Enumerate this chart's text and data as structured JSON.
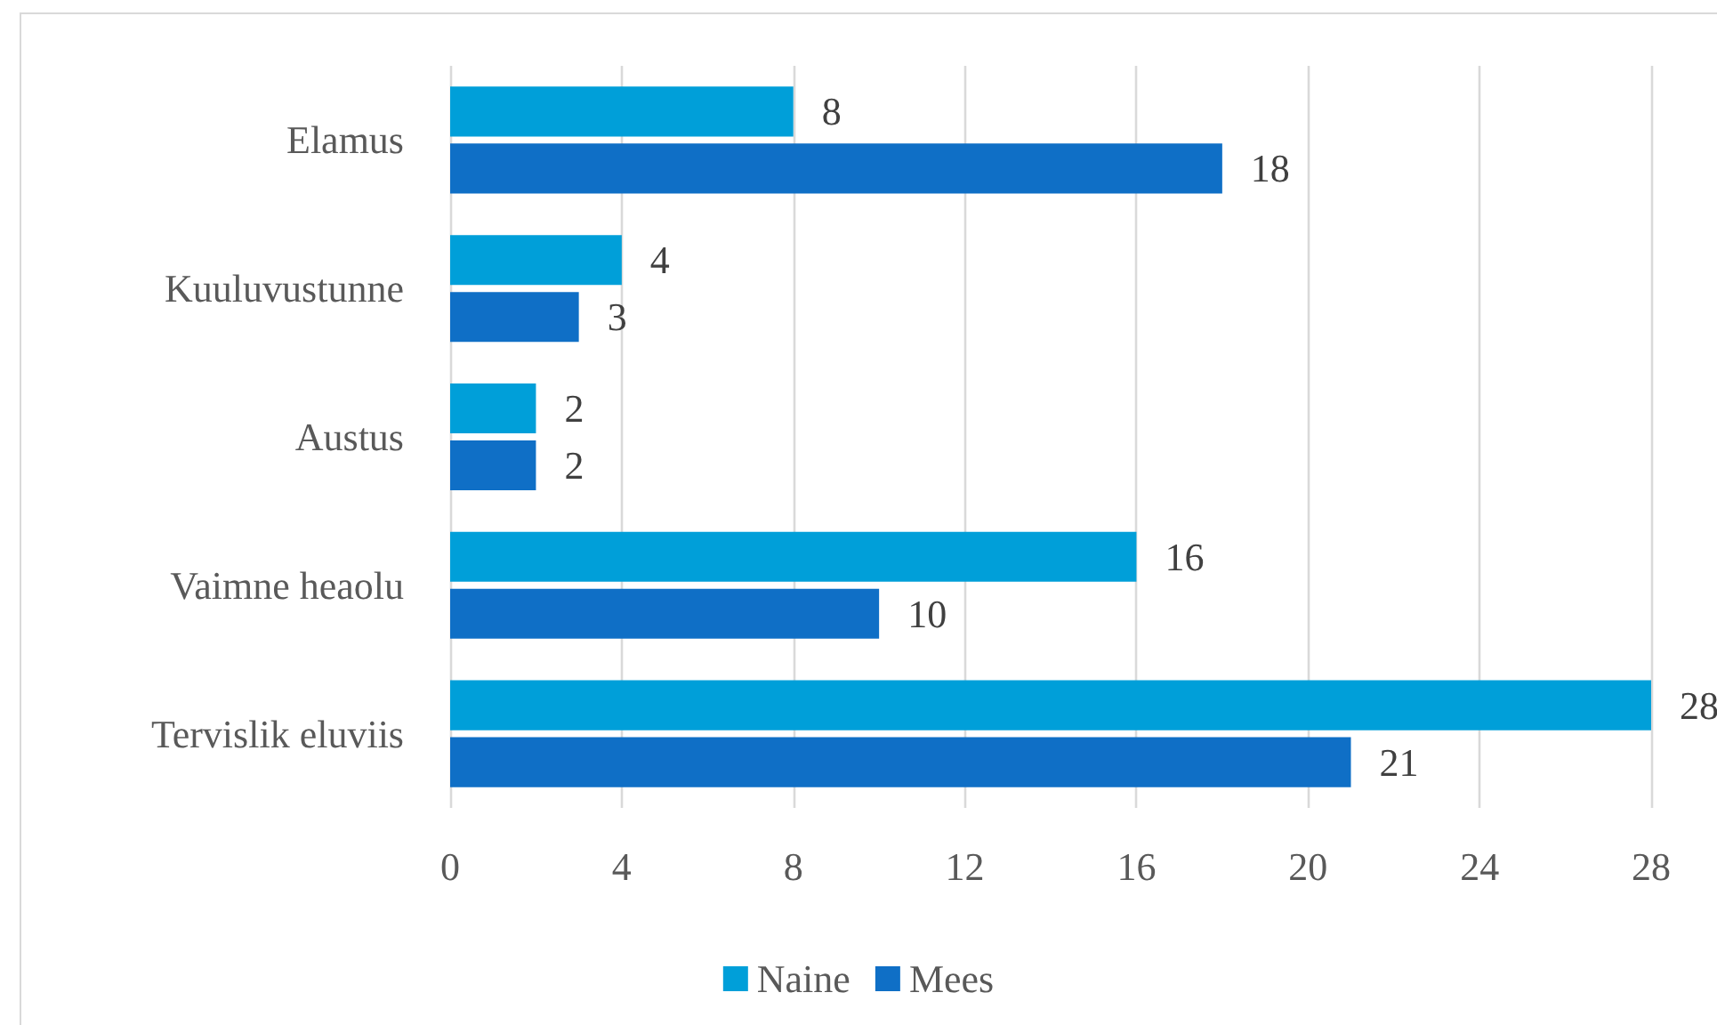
{
  "chart_data": {
    "type": "bar",
    "orientation": "horizontal",
    "categories": [
      "Elamus",
      "Kuuluvustunne",
      "Austus",
      "Vaimne heaolu",
      "Tervislik eluviis"
    ],
    "series": [
      {
        "name": "Naine",
        "color": "#009fd9",
        "values": [
          8,
          4,
          2,
          16,
          28
        ]
      },
      {
        "name": "Mees",
        "color": "#0f6fc6",
        "values": [
          18,
          3,
          2,
          10,
          21
        ]
      }
    ],
    "xlim": [
      0,
      28
    ],
    "xticks": [
      0,
      4,
      8,
      12,
      16,
      20,
      24,
      28
    ],
    "grid": "x",
    "legend": "bottom",
    "data_labels": true
  }
}
